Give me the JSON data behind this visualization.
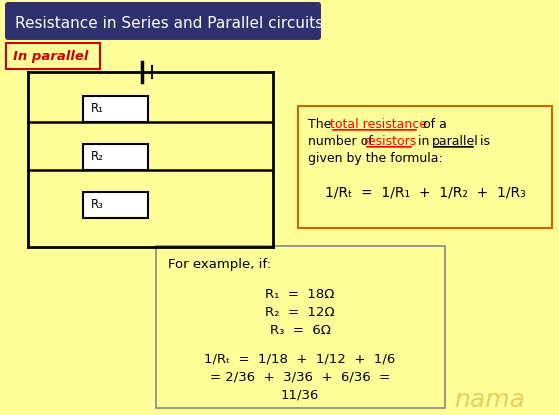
{
  "bg_color": "#FFFF99",
  "title": "Resistance in Series and Parallel circuits",
  "title_bg": "#2E3070",
  "title_color": "#FFFFFF",
  "in_parallel_color": "#CC0000",
  "formula_box_border": "#CC6600",
  "example_box_border": "#888888",
  "resistor_labels": [
    "R₁",
    "R₂",
    "R₃"
  ],
  "formula_eq": "1/Rₜ  =  1/R₁  +  1/R₂  +  1/R₃",
  "example_title": "For example, if:",
  "example_r1": "R₁  =  18Ω",
  "example_r2": "R₂  =  12Ω",
  "example_r3": "R₃  =  6Ω",
  "example_calc1": "1/Rₜ  =  1/18  +  1/12  +  1/6",
  "example_calc2": "= 2/36  +  3/36  +  6/36  =",
  "example_calc3": "11/36",
  "watermark": "nama"
}
